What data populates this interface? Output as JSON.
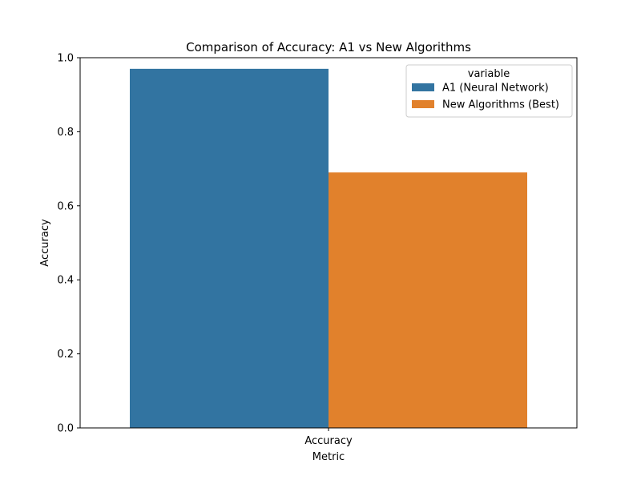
{
  "chart_data": {
    "type": "bar",
    "title": "Comparison of Accuracy: A1 vs New Algorithms",
    "xlabel": "Metric",
    "ylabel": "Accuracy",
    "categories": [
      "Accuracy"
    ],
    "ylim": [
      0,
      1.0
    ],
    "yticks": [
      0.0,
      0.2,
      0.4,
      0.6,
      0.8,
      1.0
    ],
    "ytick_labels": [
      "0.0",
      "0.2",
      "0.4",
      "0.6",
      "0.8",
      "1.0"
    ],
    "grid": false,
    "legend": {
      "title": "variable",
      "placement": "top-right"
    },
    "series": [
      {
        "name": "A1 (Neural Network)",
        "values": [
          0.97
        ],
        "color": "#3274a1"
      },
      {
        "name": "New Algorithms (Best)",
        "values": [
          0.69
        ],
        "color": "#e1812c"
      }
    ]
  }
}
